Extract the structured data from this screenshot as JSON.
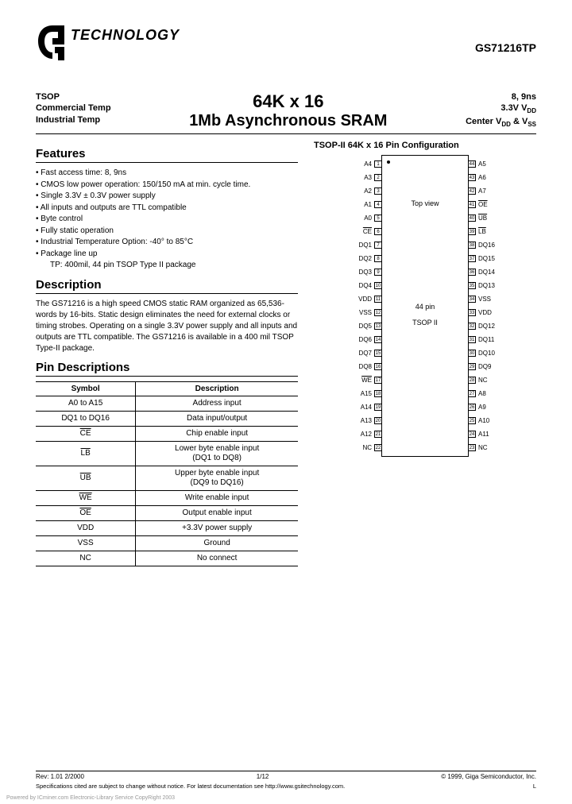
{
  "header": {
    "logo_text": "TECHNOLOGY",
    "part_number": "GS71216TP",
    "left_lines": [
      "TSOP",
      "Commercial Temp",
      "Industrial Temp"
    ],
    "center_line1": "64K x 16",
    "center_line2": "1Mb Asynchronous SRAM",
    "right_lines": [
      "8, 9ns",
      "3.3V V",
      "Center V"
    ],
    "right_line2_sub": "DD",
    "right_line3_mid": " & V",
    "right_line3_sub1": "DD",
    "right_line3_sub2": "SS"
  },
  "features": {
    "title": "Features",
    "items": [
      "Fast access time: 8, 9ns",
      "CMOS low power operation: 150/150 mA at min. cycle time.",
      "Single 3.3V ± 0.3V power supply",
      "All inputs and outputs are TTL compatible",
      "Byte control",
      "Fully static operation",
      "Industrial Temperature Option: -40° to 85°C",
      "Package line up"
    ],
    "indent_item": "TP: 400mil, 44 pin TSOP Type II package"
  },
  "description": {
    "title": "Description",
    "text": "The GS71216 is a high speed CMOS static RAM organized as 65,536-words by 16-bits. Static design eliminates the need for external clocks or timing strobes. Operating on a single 3.3V power supply and all inputs and outputs are TTL compatible. The GS71216 is available in a 400 mil TSOP Type-II package."
  },
  "pin_config": {
    "title": "TSOP-II 64K x 16 Pin Configuration",
    "top_view": "Top view",
    "mid1": "44 pin",
    "mid2": "TSOP II",
    "left_pins": [
      {
        "label": "A4",
        "n": "1"
      },
      {
        "label": "A3",
        "n": "2"
      },
      {
        "label": "A2",
        "n": "3"
      },
      {
        "label": "A1",
        "n": "4"
      },
      {
        "label": "A0",
        "n": "5"
      },
      {
        "label": "CE",
        "n": "6",
        "ov": true
      },
      {
        "label": "DQ1",
        "n": "7"
      },
      {
        "label": "DQ2",
        "n": "8"
      },
      {
        "label": "DQ3",
        "n": "9"
      },
      {
        "label": "DQ4",
        "n": "10"
      },
      {
        "label": "VDD",
        "n": "11"
      },
      {
        "label": "VSS",
        "n": "12"
      },
      {
        "label": "DQ5",
        "n": "13"
      },
      {
        "label": "DQ6",
        "n": "14"
      },
      {
        "label": "DQ7",
        "n": "15"
      },
      {
        "label": "DQ8",
        "n": "16"
      },
      {
        "label": "WE",
        "n": "17",
        "ov": true
      },
      {
        "label": "A15",
        "n": "18"
      },
      {
        "label": "A14",
        "n": "19"
      },
      {
        "label": "A13",
        "n": "20"
      },
      {
        "label": "A12",
        "n": "21"
      },
      {
        "label": "NC",
        "n": "22"
      }
    ],
    "right_pins": [
      {
        "label": "A5",
        "n": "44"
      },
      {
        "label": "A6",
        "n": "43"
      },
      {
        "label": "A7",
        "n": "42"
      },
      {
        "label": "OE",
        "n": "41",
        "ov": true
      },
      {
        "label": "UB",
        "n": "40",
        "ov": true
      },
      {
        "label": "LB",
        "n": "39",
        "ov": true
      },
      {
        "label": "DQ16",
        "n": "38"
      },
      {
        "label": "DQ15",
        "n": "37"
      },
      {
        "label": "DQ14",
        "n": "36"
      },
      {
        "label": "DQ13",
        "n": "35"
      },
      {
        "label": "VSS",
        "n": "34"
      },
      {
        "label": "VDD",
        "n": "33"
      },
      {
        "label": "DQ12",
        "n": "32"
      },
      {
        "label": "DQ11",
        "n": "31"
      },
      {
        "label": "DQ10",
        "n": "30"
      },
      {
        "label": "DQ9",
        "n": "29"
      },
      {
        "label": "NC",
        "n": "28"
      },
      {
        "label": "A8",
        "n": "27"
      },
      {
        "label": "A9",
        "n": "26"
      },
      {
        "label": "A10",
        "n": "25"
      },
      {
        "label": "A11",
        "n": "24"
      },
      {
        "label": "NC",
        "n": "23"
      }
    ]
  },
  "pin_desc": {
    "title": "Pin Descriptions",
    "header_symbol": "Symbol",
    "header_desc": "Description",
    "rows": [
      {
        "sym": "A0 to A15",
        "desc": "Address input"
      },
      {
        "sym": "DQ1 to DQ16",
        "desc": "Data input/output"
      },
      {
        "sym": "CE",
        "desc": "Chip enable input",
        "ov": true
      },
      {
        "sym": "LB",
        "desc": "Lower byte enable input\n(DQ1 to DQ8)",
        "ov": true
      },
      {
        "sym": "UB",
        "desc": "Upper byte enable input\n(DQ9 to DQ16)",
        "ov": true
      },
      {
        "sym": "WE",
        "desc": "Write enable input",
        "ov": true
      },
      {
        "sym": "OE",
        "desc": "Output enable input",
        "ov": true
      },
      {
        "sym": "VDD",
        "desc": "+3.3V power supply"
      },
      {
        "sym": "VSS",
        "desc": "Ground"
      },
      {
        "sym": "NC",
        "desc": "No connect"
      }
    ]
  },
  "footer": {
    "rev": "Rev: 1.01 2/2000",
    "page": "1/12",
    "copyright": "© 1999, Giga Semiconductor, Inc.",
    "note": "Specifications cited are subject to change without notice. For latest documentation see http://www.gsitechnology.com.",
    "note_suffix": "L",
    "watermark": "Powered by ICminer.com Electronic-Library Service CopyRight 2003"
  }
}
